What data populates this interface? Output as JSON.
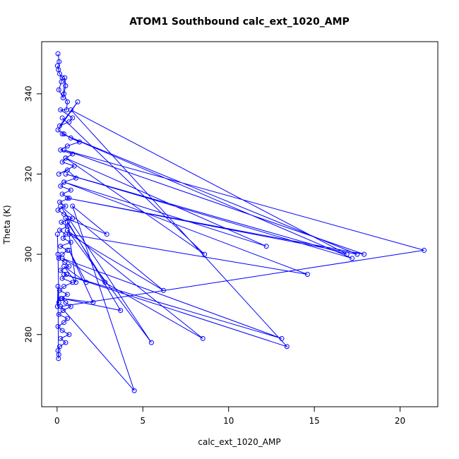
{
  "chart_data": {
    "type": "line",
    "title": "ATOM1 Southbound calc_ext_1020_AMP",
    "xlabel": "calc_ext_1020_AMP",
    "ylabel": "Theta (K)",
    "xlim": [
      -0.9,
      22.2
    ],
    "ylim": [
      262,
      353
    ],
    "x_ticks": [
      0,
      5,
      10,
      15,
      20
    ],
    "y_ticks": [
      280,
      300,
      320,
      340
    ],
    "grid": false,
    "legend": "none",
    "color": "#0000ff",
    "marker": "open-circle",
    "series": [
      {
        "x": [
          0.05,
          0.12,
          0.08,
          0.02,
          0.15,
          0.3,
          0.25,
          0.1,
          0.35,
          0.45,
          0.5,
          0.4,
          0.6,
          0.55,
          0.2,
          0.9,
          0.7,
          0.15,
          1.2,
          0.05,
          0.4,
          0.8,
          1.3,
          0.6,
          0.2,
          0.9,
          0.5,
          0.3,
          1.0,
          0.1,
          0.6,
          1.1,
          0.4,
          0.2,
          0.8,
          0.3,
          0.7,
          0.15,
          0.5,
          0.05,
          0.4,
          0.9,
          0.25,
          0.6,
          0.15,
          0.5,
          0.35,
          0.8,
          0.2,
          0.6,
          0.3,
          0.1,
          0.45,
          0.7,
          0.2,
          0.55,
          0.3,
          0.9,
          0.4,
          0.15,
          0.6,
          0.25,
          0.5,
          0.8,
          0.35,
          0.1,
          0.6,
          0.4,
          0.05,
          0.3,
          0.7,
          0.2,
          0.5,
          0.15,
          0.05,
          0.1,
          0.08,
          0.05,
          0.02,
          0.1,
          0.05,
          0.02
        ],
        "y": [
          350,
          348,
          346,
          347,
          345,
          344,
          343,
          341,
          339,
          344,
          342,
          340,
          338,
          336,
          336,
          334,
          333,
          332,
          338,
          331,
          330,
          329,
          328,
          327,
          326,
          325,
          324,
          323,
          322,
          320,
          321,
          319,
          318,
          317,
          316,
          315,
          314,
          313,
          312,
          311,
          310,
          309,
          308,
          307,
          306,
          305,
          304,
          303,
          302,
          301,
          300,
          299,
          298,
          297,
          296,
          295,
          294,
          293,
          292,
          291,
          290,
          289,
          288,
          287,
          286,
          285,
          284,
          283,
          282,
          281,
          280,
          279,
          278,
          277,
          276,
          275,
          274,
          292,
          287,
          288,
          300,
          305
        ]
      },
      {
        "x": [
          0.3,
          8.6,
          0.5,
          12.2,
          0.4,
          14.6,
          0.7,
          6.2,
          0.2,
          5.5,
          0.6,
          8.5,
          0.3,
          13.1,
          0.4,
          13.4,
          0.8,
          16.9,
          0.5,
          17.2,
          0.3,
          17.5,
          0.6,
          17.9,
          0.4,
          21.4,
          0.2,
          4.5,
          0.9,
          2.9,
          0.5,
          3.7,
          0.3,
          2.1,
          0.7,
          1.7,
          0.4,
          1.1,
          0.6,
          2.8
        ],
        "y": [
          334,
          300,
          324,
          302,
          318,
          295,
          305,
          291,
          312,
          278,
          306,
          279,
          299,
          279,
          295,
          277,
          336,
          300,
          320,
          299,
          330,
          300,
          314,
          300,
          326,
          301,
          287,
          266,
          312,
          305,
          309,
          286,
          289,
          288,
          301,
          293,
          297,
          293,
          308,
          293
        ]
      }
    ]
  }
}
